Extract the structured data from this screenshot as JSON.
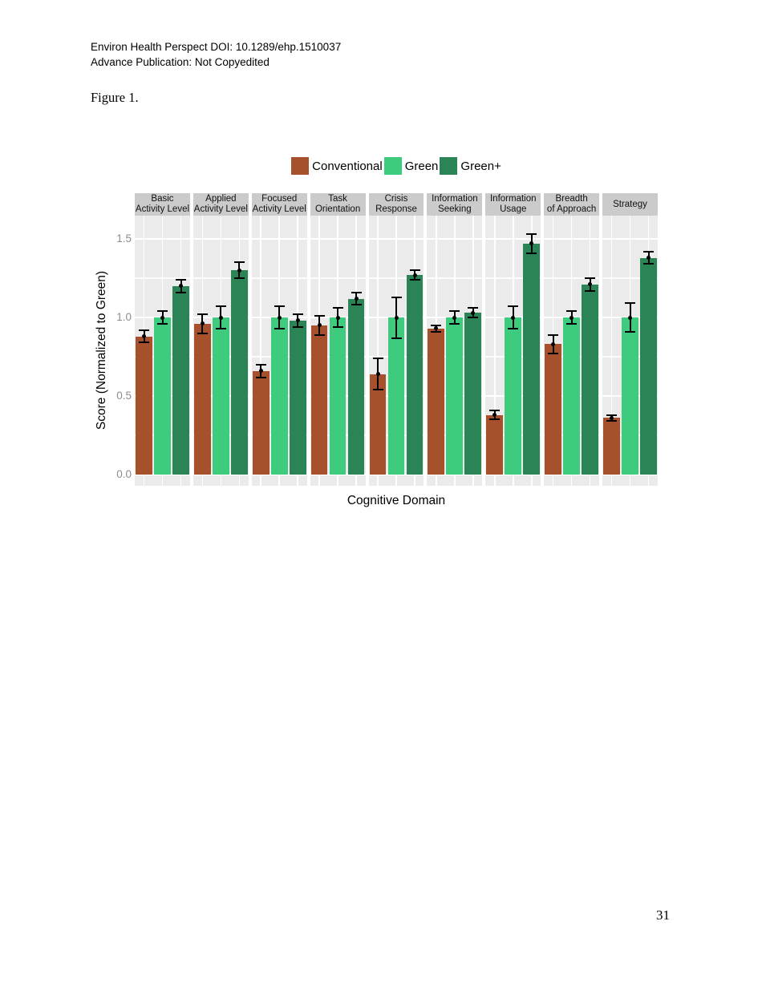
{
  "page": {
    "header_line1": "Environ Health Perspect DOI: 10.1289/ehp.1510037",
    "header_line2": "Advance Publication: Not Copyedited",
    "figure_label": "Figure 1.",
    "page_number": "31"
  },
  "chart_data": {
    "type": "bar",
    "title": "",
    "xlabel": "Cognitive Domain",
    "ylabel": "Score (Normalized to Green)",
    "facets": [
      "Basic Activity Level",
      "Applied Activity Level",
      "Focused Activity Level",
      "Task Orientation",
      "Crisis Response",
      "Information Seeking",
      "Information Usage",
      "Breadth of Approach",
      "Strategy"
    ],
    "facet_label_lines": [
      [
        "Basic",
        "Activity Level"
      ],
      [
        "Applied",
        "Activity Level"
      ],
      [
        "Focused",
        "Activity Level"
      ],
      [
        "Task",
        "Orientation"
      ],
      [
        "Crisis",
        "Response"
      ],
      [
        "Information",
        "Seeking"
      ],
      [
        "Information",
        "Usage"
      ],
      [
        "Breadth",
        "of Approach"
      ],
      [
        "Strategy"
      ]
    ],
    "series": [
      {
        "name": "Conventional",
        "color": "#A6512B",
        "values": [
          0.88,
          0.96,
          0.66,
          0.95,
          0.64,
          0.93,
          0.38,
          0.83,
          0.36
        ],
        "errors": [
          0.04,
          0.06,
          0.04,
          0.06,
          0.1,
          0.02,
          0.03,
          0.06,
          0.02
        ]
      },
      {
        "name": "Green",
        "color": "#3FCB7E",
        "values": [
          1.0,
          1.0,
          1.0,
          1.0,
          1.0,
          1.0,
          1.0,
          1.0,
          1.0
        ],
        "errors": [
          0.04,
          0.07,
          0.07,
          0.06,
          0.13,
          0.04,
          0.07,
          0.04,
          0.09
        ]
      },
      {
        "name": "Green+",
        "color": "#2B8456",
        "values": [
          1.2,
          1.3,
          0.98,
          1.12,
          1.27,
          1.03,
          1.47,
          1.21,
          1.38
        ],
        "errors": [
          0.04,
          0.05,
          0.04,
          0.04,
          0.03,
          0.03,
          0.06,
          0.04,
          0.04
        ]
      }
    ],
    "error_bars": true,
    "yticks": [
      0.0,
      0.5,
      1.0,
      1.5
    ],
    "ytick_labels": [
      "0.0",
      "0.5",
      "1.0",
      "1.5"
    ],
    "ylim": [
      -0.08,
      1.65
    ],
    "legend_position": "top",
    "grid": true,
    "colors": {
      "panel_bg": "#EBEBEB",
      "strip_bg": "#CBCBCB",
      "grid": "#FFFFFF",
      "axis_text": "#8C8C8C",
      "error_bar": "#000000"
    }
  }
}
